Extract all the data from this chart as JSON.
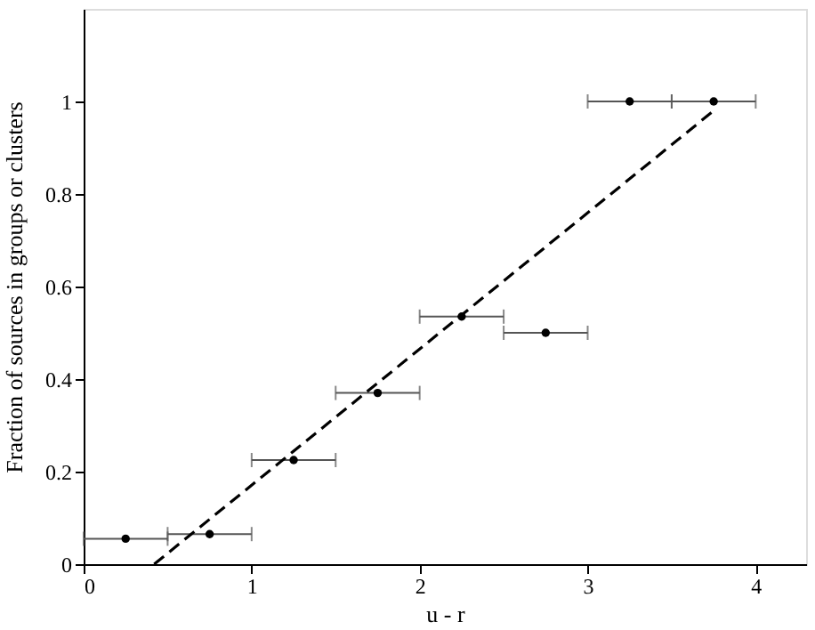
{
  "chart_data": {
    "type": "scatter",
    "xlabel": "u - r",
    "ylabel": "Fraction of sources in groups or clusters",
    "xlim": [
      0,
      4.3
    ],
    "xticks": [
      0,
      1,
      2,
      3,
      4
    ],
    "ylim": [
      0,
      1.2
    ],
    "yticks": [
      0,
      0.2,
      0.4,
      0.6,
      0.8,
      1
    ],
    "grid": false,
    "series": [
      {
        "marker": "circle",
        "color": "#000000",
        "x": [
          0.25,
          0.75,
          1.25,
          1.75,
          2.25,
          2.75,
          3.25,
          3.75
        ],
        "values": [
          0.055,
          0.065,
          0.225,
          0.37,
          0.535,
          0.5,
          1.0,
          1.0
        ],
        "xerrors": [
          0.25,
          0.25,
          0.25,
          0.25,
          0.25,
          0.25,
          0.25,
          0.25
        ]
      },
      {
        "type": "line",
        "color": "#000000",
        "line_style": "dashed",
        "marker": "none",
        "x": [
          0.42,
          3.75
        ],
        "values": [
          0,
          0.98
        ]
      }
    ]
  }
}
